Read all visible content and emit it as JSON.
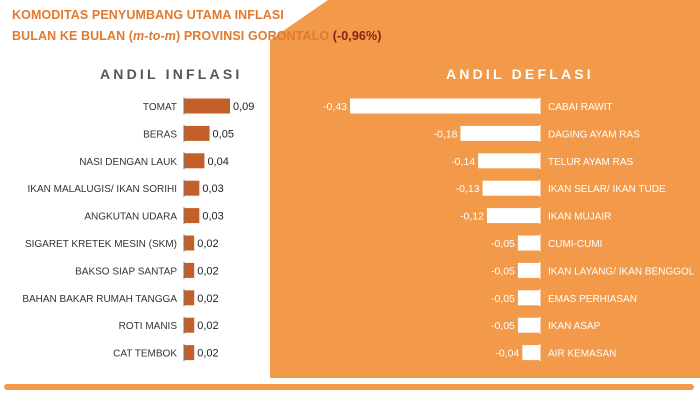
{
  "header": {
    "line1": "KOMODITAS PENYUMBANG UTAMA INFLASI",
    "line2_prefix": "BULAN KE BULAN (",
    "line2_italic": "m-to-m",
    "line2_mid": ") PROVINSI GORONTALO ",
    "line2_total": "(-0,96%)"
  },
  "colors": {
    "orange_bg": "#f2994a",
    "inflation_bar": "#c3602a",
    "deflation_bar": "#ffffff",
    "title_orange": "#e07a2e",
    "total_red": "#8a1f12"
  },
  "chart_data": [
    {
      "type": "bar",
      "orientation": "horizontal",
      "title": "ANDIL INFLASI",
      "categories": [
        "TOMAT",
        "BERAS",
        "NASI DENGAN LAUK",
        "IKAN MALALUGIS/ IKAN SORIHI",
        "ANGKUTAN UDARA",
        "SIGARET KRETEK MESIN (SKM)",
        "BAKSO SIAP SANTAP",
        "BAHAN BAKAR RUMAH TANGGA",
        "ROTI MANIS",
        "CAT TEMBOK"
      ],
      "values": [
        0.09,
        0.05,
        0.04,
        0.03,
        0.03,
        0.02,
        0.02,
        0.02,
        0.02,
        0.02
      ],
      "labels": [
        "0,09",
        "0,05",
        "0,04",
        "0,03",
        "0,03",
        "0,02",
        "0,02",
        "0,02",
        "0,02",
        "0,02"
      ],
      "xlim": [
        0,
        0.09
      ]
    },
    {
      "type": "bar",
      "orientation": "horizontal",
      "title": "ANDIL DEFLASI",
      "categories": [
        "CABAI RAWIT",
        "DAGING AYAM RAS",
        "TELUR AYAM RAS",
        "IKAN SELAR/ IKAN TUDE",
        "IKAN MUJAIR",
        "CUMI-CUMI",
        "IKAN LAYANG/ IKAN BENGGOL",
        "EMAS PERHIASAN",
        "IKAN ASAP",
        "AIR KEMASAN"
      ],
      "values": [
        -0.43,
        -0.18,
        -0.14,
        -0.13,
        -0.12,
        -0.05,
        -0.05,
        -0.05,
        -0.05,
        -0.04
      ],
      "labels": [
        "-0,43",
        "-0,18",
        "-0,14",
        "-0,13",
        "-0,12",
        "-0,05",
        "-0,05",
        "-0,05",
        "-0,05",
        "-0,04"
      ],
      "xlim": [
        -0.43,
        0
      ]
    }
  ]
}
